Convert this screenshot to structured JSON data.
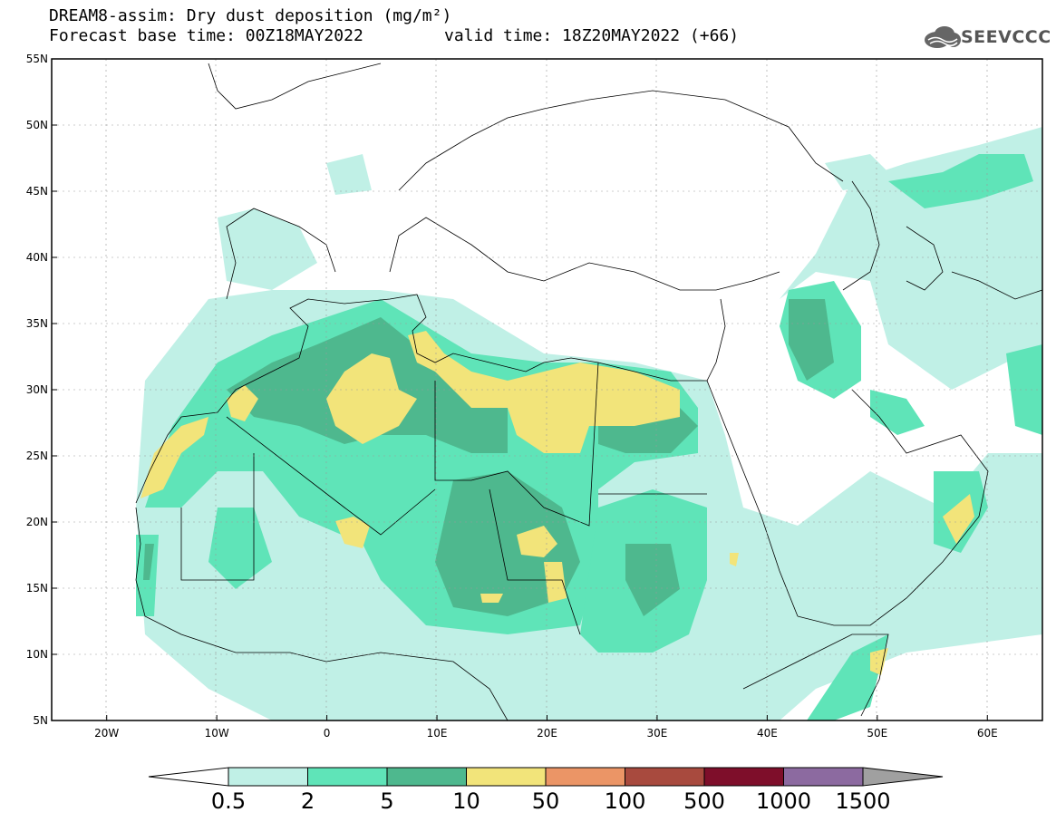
{
  "header": {
    "title": "DREAM8-assim: Dry dust deposition (mg/m²)",
    "base_time": "Forecast base time: 00Z18MAY2022",
    "valid_time": "valid time: 18Z20MAY2022 (+66)"
  },
  "logo": {
    "text": "SEEVCCC",
    "icon": "cloud-icon"
  },
  "map": {
    "lon_range": [
      -25,
      65
    ],
    "lat_range": [
      5,
      55
    ],
    "lat_ticks": [
      "55N",
      "50N",
      "45N",
      "40N",
      "35N",
      "30N",
      "25N",
      "20N",
      "15N",
      "10N",
      "5N"
    ],
    "lon_ticks": [
      "20W",
      "10W",
      "0",
      "10E",
      "20E",
      "30E",
      "40E",
      "50E",
      "60E"
    ]
  },
  "colorbar": {
    "labels": [
      "0.5",
      "2",
      "5",
      "10",
      "50",
      "100",
      "500",
      "1000",
      "1500"
    ],
    "colors": [
      "#c0f0e6",
      "#5fe4b8",
      "#4eb88e",
      "#f2e47a",
      "#eb9566",
      "#a84a3e",
      "#7e0e2a",
      "#8c6aa0",
      "#a0a0a0"
    ]
  }
}
